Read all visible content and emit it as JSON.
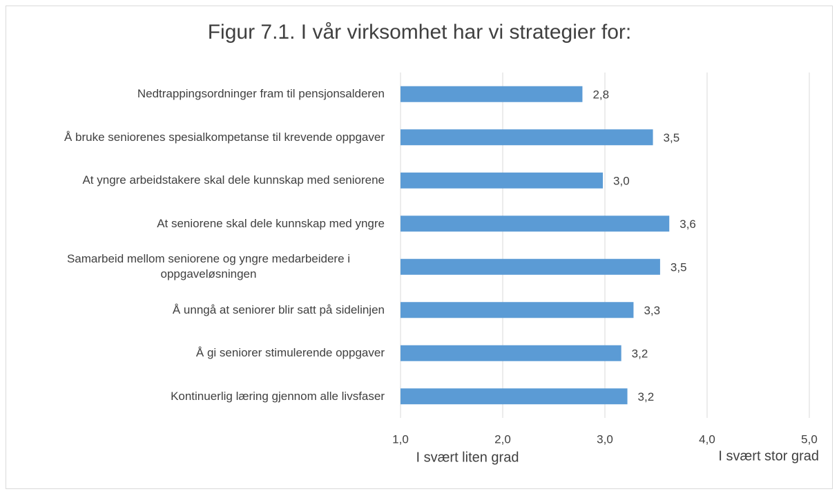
{
  "chart_data": {
    "type": "bar",
    "orientation": "horizontal",
    "title": "Figur 7.1. I vår virksomhet har vi strategier for:",
    "categories": [
      "Nedtrappingsordninger fram til pensjonsalderen",
      "Å bruke seniorenes spesialkompetanse til krevende oppgaver",
      "At yngre arbeidstakere skal dele kunnskap med seniorene",
      "At seniorene skal dele kunnskap med yngre",
      "Samarbeid mellom seniorene og yngre medarbeidere i oppgaveløsningen",
      "Å unngå at seniorer blir satt på sidelinjen",
      "Å gi seniorer stimulerende oppgaver",
      "Kontinuerlig læring gjennom alle livsfaser"
    ],
    "values": [
      2.78,
      3.47,
      2.98,
      3.63,
      3.54,
      3.28,
      3.16,
      3.22
    ],
    "value_labels": [
      "2,8",
      "3,5",
      "3,0",
      "3,6",
      "3,5",
      "3,3",
      "3,2",
      "3,2"
    ],
    "color": "#5b9bd5",
    "xlim": [
      1,
      5
    ],
    "xticks": [
      {
        "value": 1,
        "label": "1,0"
      },
      {
        "value": 2,
        "label": "2,0"
      },
      {
        "value": 3,
        "label": "3,0"
      },
      {
        "value": 4,
        "label": "4,0"
      },
      {
        "value": 5,
        "label": "5,0"
      }
    ],
    "grid": true,
    "annotations": [
      "I svært liten grad",
      "I svært stor grad"
    ]
  }
}
